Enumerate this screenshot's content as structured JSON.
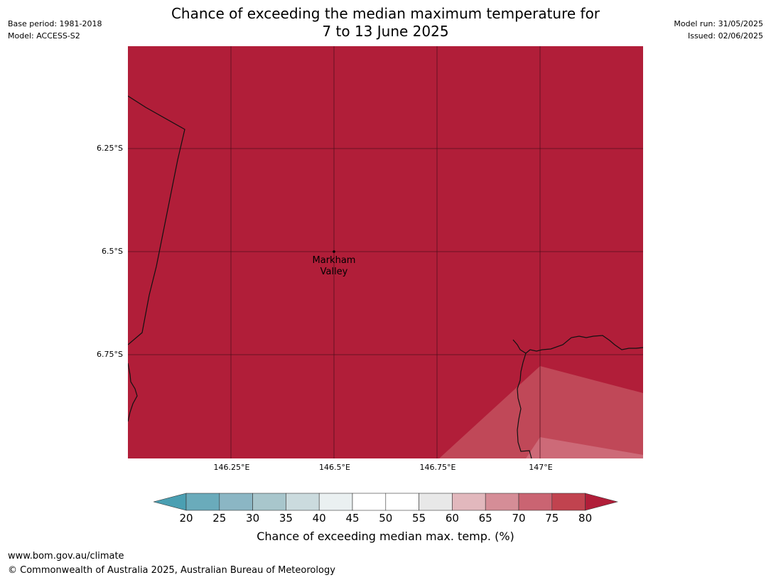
{
  "title_line1": "Chance of exceeding the median maximum temperature for",
  "title_line2": "7 to 13 June 2025",
  "meta_left": [
    "Base period: 1981-2018",
    "Model: ACCESS-S2"
  ],
  "meta_right": [
    "Model run: 31/05/2025",
    "Issued: 02/06/2025"
  ],
  "map": {
    "background_color": "#b11e39",
    "lat_labels": [
      "6.25°S",
      "6.5°S",
      "6.75°S"
    ],
    "lon_labels": [
      "146.25°E",
      "146.5°E",
      "146.75°E",
      "147°E"
    ],
    "place": {
      "name_line1": "Markham",
      "name_line2": "Valley"
    }
  },
  "colorbar": {
    "ticks": [
      "20",
      "25",
      "30",
      "35",
      "40",
      "45",
      "50",
      "55",
      "60",
      "65",
      "70",
      "75",
      "80"
    ],
    "colors": [
      "#4a9fb2",
      "#6aabbb",
      "#8bb6c4",
      "#a8c6cc",
      "#cbdbde",
      "#eaf0f1",
      "#ffffff",
      "#ffffff",
      "#e8e8e8",
      "#e2b8bd",
      "#d58d97",
      "#ca6472",
      "#c1434f",
      "#b11e39"
    ],
    "title": "Chance of exceeding median max. temp. (%)"
  },
  "footer": [
    "www.bom.gov.au/climate",
    "© Commonwealth of Australia 2025, Australian Bureau of Meteorology"
  ]
}
